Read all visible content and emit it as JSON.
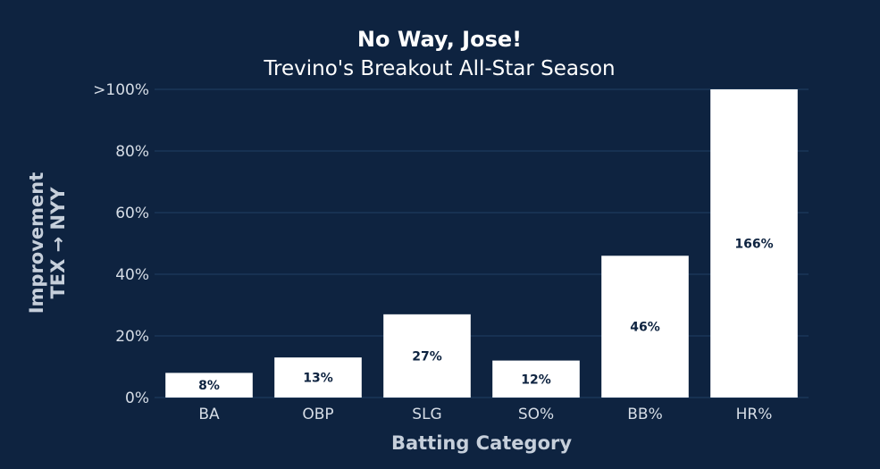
{
  "colors": {
    "background": "#0e2340",
    "bar": "#ffffff",
    "bar_label": "#0e2340",
    "grid": "#1d3a5e",
    "tick_text": "#d6dde6",
    "axis_title": "#c6cfdb",
    "title": "#ffffff"
  },
  "chart_data": {
    "type": "bar",
    "title": "No Way, Jose!",
    "subtitle": "Trevino's Breakout All-Star Season",
    "xlabel": "Batting Category",
    "ylabel_lines": [
      "Improvement",
      "TEX → NYY"
    ],
    "categories": [
      "BA",
      "OBP",
      "SLG",
      "SO%",
      "BB%",
      "HR%"
    ],
    "values": [
      8,
      13,
      27,
      12,
      46,
      166
    ],
    "data_labels": [
      "8%",
      "13%",
      "27%",
      "12%",
      "46%",
      "166%"
    ],
    "ylim": [
      0,
      100
    ],
    "yticks": [
      0,
      20,
      40,
      60,
      80,
      100
    ],
    "ytick_labels": [
      "0%",
      "20%",
      "40%",
      "60%",
      "80%",
      ">100%"
    ],
    "grid": true,
    "legend": false
  }
}
